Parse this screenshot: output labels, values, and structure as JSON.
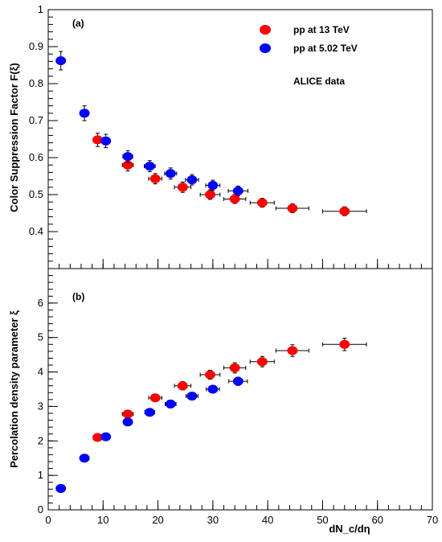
{
  "colors": {
    "red": "#ff0000",
    "blue": "#0000ff",
    "axis": "#000000"
  },
  "chart_data": [
    {
      "type": "scatter",
      "panel_tag": "(a)",
      "annotation": "ALICE data",
      "xlabel": "dN_c/dη",
      "ylabel": "Color Suppression Factor F(ξ)",
      "xlim": [
        0,
        70
      ],
      "ylim": [
        0.3,
        1.0
      ],
      "y_ticks": [
        0.4,
        0.5,
        0.6,
        0.7,
        0.8,
        0.9,
        1
      ],
      "y_tick_labels": [
        "0.4",
        "0.5",
        "0.6",
        "0.7",
        "0.8",
        "0.9",
        "1"
      ],
      "legend_position": "top-right",
      "series": [
        {
          "name": "pp at 13 TeV",
          "color": "#ff0000",
          "points": [
            {
              "x": 9.0,
              "y": 0.648,
              "xerr": 0.8,
              "yerr": 0.018
            },
            {
              "x": 14.5,
              "y": 0.58,
              "xerr": 1.0,
              "yerr": 0.016
            },
            {
              "x": 19.5,
              "y": 0.543,
              "xerr": 1.2,
              "yerr": 0.014
            },
            {
              "x": 24.5,
              "y": 0.52,
              "xerr": 1.5,
              "yerr": 0.014
            },
            {
              "x": 29.5,
              "y": 0.5,
              "xerr": 1.8,
              "yerr": 0.013
            },
            {
              "x": 34.0,
              "y": 0.488,
              "xerr": 2.0,
              "yerr": 0.012
            },
            {
              "x": 39.0,
              "y": 0.478,
              "xerr": 2.2,
              "yerr": 0.012
            },
            {
              "x": 44.5,
              "y": 0.463,
              "xerr": 3.0,
              "yerr": 0.012
            },
            {
              "x": 54.0,
              "y": 0.455,
              "xerr": 4.0,
              "yerr": 0.012
            }
          ]
        },
        {
          "name": "pp at 5.02 TeV",
          "color": "#0000ff",
          "points": [
            {
              "x": 2.3,
              "y": 0.862,
              "xerr": 0.5,
              "yerr": 0.025
            },
            {
              "x": 6.6,
              "y": 0.72,
              "xerr": 0.7,
              "yerr": 0.02
            },
            {
              "x": 10.5,
              "y": 0.645,
              "xerr": 0.8,
              "yerr": 0.018
            },
            {
              "x": 14.5,
              "y": 0.603,
              "xerr": 0.9,
              "yerr": 0.016
            },
            {
              "x": 18.5,
              "y": 0.577,
              "xerr": 1.0,
              "yerr": 0.015
            },
            {
              "x": 22.3,
              "y": 0.557,
              "xerr": 1.1,
              "yerr": 0.015
            },
            {
              "x": 26.2,
              "y": 0.54,
              "xerr": 1.2,
              "yerr": 0.014
            },
            {
              "x": 30.0,
              "y": 0.525,
              "xerr": 1.3,
              "yerr": 0.014
            },
            {
              "x": 34.6,
              "y": 0.51,
              "xerr": 1.8,
              "yerr": 0.013
            }
          ]
        }
      ]
    },
    {
      "type": "scatter",
      "panel_tag": "(b)",
      "xlabel": "dN_c/dη",
      "ylabel": "Percolation density parameter ξ",
      "xlim": [
        0,
        70
      ],
      "ylim": [
        0,
        7
      ],
      "x_ticks": [
        0,
        10,
        20,
        30,
        40,
        50,
        60,
        70
      ],
      "x_tick_labels": [
        "0",
        "10",
        "20",
        "30",
        "40",
        "50",
        "60",
        "70"
      ],
      "y_ticks": [
        0,
        1,
        2,
        3,
        4,
        5,
        6
      ],
      "y_tick_labels": [
        "0",
        "1",
        "2",
        "3",
        "4",
        "5",
        "6"
      ],
      "series": [
        {
          "name": "pp at 13 TeV",
          "color": "#ff0000",
          "points": [
            {
              "x": 9.0,
              "y": 2.1,
              "xerr": 0.6,
              "yerr": 0.05
            },
            {
              "x": 14.5,
              "y": 2.78,
              "xerr": 1.0,
              "yerr": 0.08
            },
            {
              "x": 19.5,
              "y": 3.25,
              "xerr": 1.2,
              "yerr": 0.1
            },
            {
              "x": 24.5,
              "y": 3.6,
              "xerr": 1.5,
              "yerr": 0.12
            },
            {
              "x": 29.5,
              "y": 3.92,
              "xerr": 1.8,
              "yerr": 0.13
            },
            {
              "x": 34.0,
              "y": 4.12,
              "xerr": 2.0,
              "yerr": 0.15
            },
            {
              "x": 39.0,
              "y": 4.3,
              "xerr": 2.2,
              "yerr": 0.15
            },
            {
              "x": 44.5,
              "y": 4.62,
              "xerr": 3.0,
              "yerr": 0.17
            },
            {
              "x": 54.0,
              "y": 4.8,
              "xerr": 4.0,
              "yerr": 0.18
            }
          ]
        },
        {
          "name": "pp at 5.02 TeV",
          "color": "#0000ff",
          "points": [
            {
              "x": 2.3,
              "y": 0.62,
              "xerr": 0.4,
              "yerr": 0.03
            },
            {
              "x": 6.6,
              "y": 1.5,
              "xerr": 0.5,
              "yerr": 0.04
            },
            {
              "x": 10.5,
              "y": 2.12,
              "xerr": 0.7,
              "yerr": 0.05
            },
            {
              "x": 14.5,
              "y": 2.55,
              "xerr": 0.8,
              "yerr": 0.06
            },
            {
              "x": 18.5,
              "y": 2.83,
              "xerr": 0.9,
              "yerr": 0.07
            },
            {
              "x": 22.3,
              "y": 3.07,
              "xerr": 1.0,
              "yerr": 0.08
            },
            {
              "x": 26.2,
              "y": 3.3,
              "xerr": 1.1,
              "yerr": 0.09
            },
            {
              "x": 30.0,
              "y": 3.5,
              "xerr": 1.2,
              "yerr": 0.1
            },
            {
              "x": 34.6,
              "y": 3.73,
              "xerr": 1.7,
              "yerr": 0.12
            }
          ]
        }
      ]
    }
  ]
}
